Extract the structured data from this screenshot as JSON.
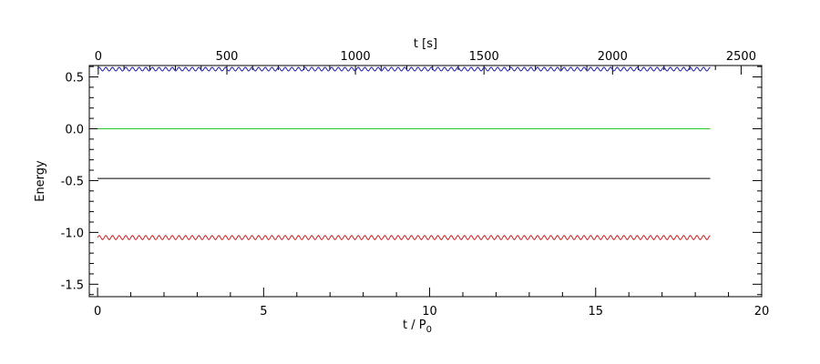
{
  "chart_data": {
    "type": "line",
    "title": "",
    "xlabel_bottom": "t / P",
    "xlabel_bottom_subscript": "0",
    "xlabel_top": "t [s]",
    "ylabel": "Energy",
    "xlim_bottom": [
      -0.25,
      20
    ],
    "xlim_top": [
      -35,
      2580
    ],
    "ylim": [
      -1.62,
      0.61
    ],
    "x_ticks_bottom": [
      0,
      5,
      10,
      15,
      20
    ],
    "x_ticks_bottom_labels": [
      "0",
      "5",
      "10",
      "15",
      "20"
    ],
    "x_ticks_top": [
      0,
      500,
      1000,
      1500,
      2000,
      2500
    ],
    "x_ticks_top_labels": [
      "0",
      "500",
      "1000",
      "1500",
      "2000",
      "2500"
    ],
    "y_ticks": [
      0.5,
      0.0,
      -0.5,
      -1.0,
      -1.5
    ],
    "y_ticks_labels": [
      "0.5",
      "0.0",
      "-0.5",
      "-1.0",
      "-1.5"
    ],
    "grid": false,
    "series": [
      {
        "color": "#2222aa",
        "x_range": [
          0,
          18.45
        ],
        "mean": 0.575,
        "oscillation_amplitude": 0.018,
        "oscillation_period": 0.2
      },
      {
        "color": "#22cc22",
        "x_range": [
          0,
          18.45
        ],
        "mean": 0.0,
        "oscillation_amplitude": 0,
        "oscillation_period": 0
      },
      {
        "color": "#000000",
        "x_range": [
          0,
          18.45
        ],
        "mean": -0.48,
        "oscillation_amplitude": 0,
        "oscillation_period": 0
      },
      {
        "color": "#cc2222",
        "x_range": [
          0,
          18.45
        ],
        "mean": -1.05,
        "oscillation_amplitude": 0.02,
        "oscillation_period": 0.2
      }
    ]
  }
}
